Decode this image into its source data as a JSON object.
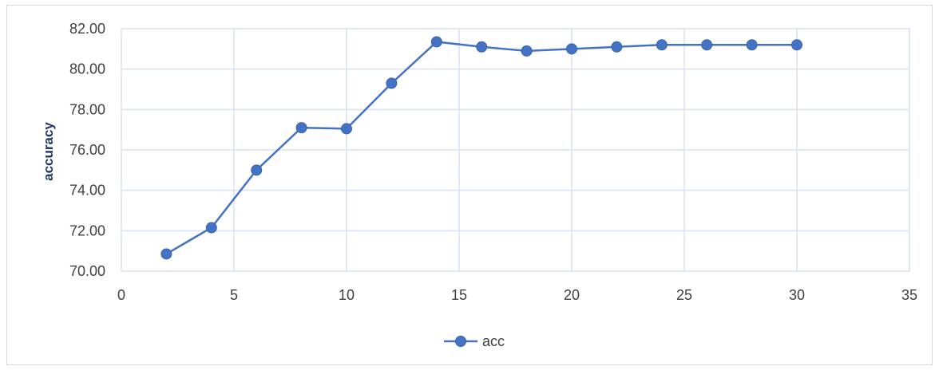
{
  "chart_data": {
    "type": "line",
    "title": "",
    "xlabel": "",
    "ylabel": "accuracy",
    "xlim": [
      0,
      35
    ],
    "ylim": [
      70,
      82
    ],
    "xticks": [
      0,
      5,
      10,
      15,
      20,
      25,
      30,
      35
    ],
    "yticks": [
      70,
      72,
      74,
      76,
      78,
      80,
      82
    ],
    "xtick_labels": [
      "0",
      "5",
      "10",
      "15",
      "20",
      "25",
      "30",
      "35"
    ],
    "ytick_labels": [
      "70.00",
      "72.00",
      "74.00",
      "76.00",
      "78.00",
      "80.00",
      "82.00"
    ],
    "grid": true,
    "legend_position": "bottom",
    "series": [
      {
        "name": "acc",
        "color": "#4472c4",
        "x": [
          2,
          4,
          6,
          8,
          10,
          12,
          14,
          16,
          18,
          20,
          22,
          24,
          26,
          28,
          30
        ],
        "y": [
          70.85,
          72.15,
          75.0,
          77.1,
          77.05,
          79.3,
          81.35,
          81.1,
          80.9,
          81.0,
          81.1,
          81.2,
          81.2,
          81.2,
          81.2
        ]
      }
    ]
  }
}
